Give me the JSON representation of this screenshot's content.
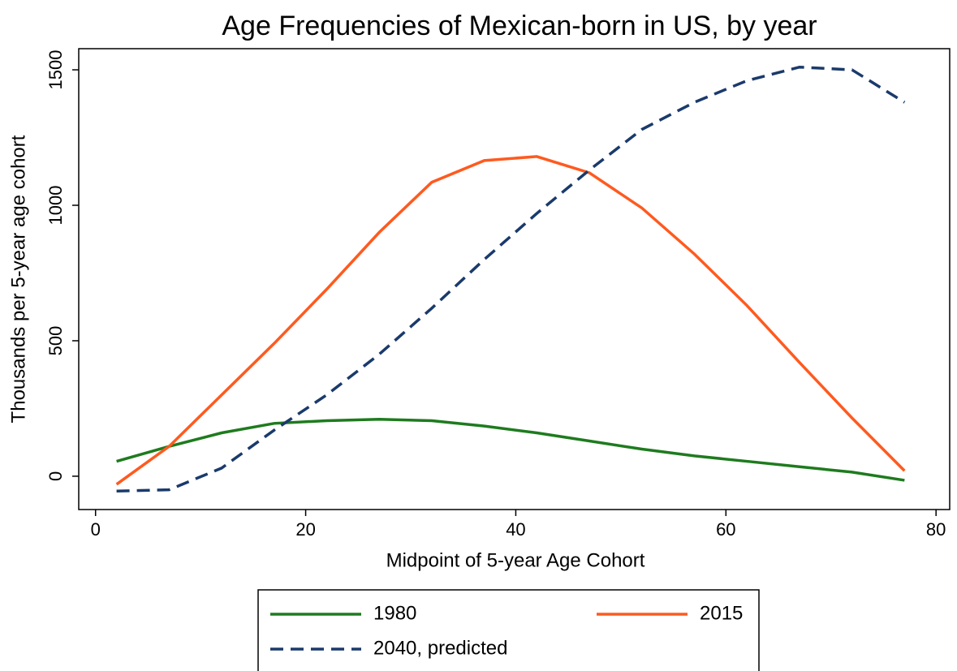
{
  "chart_data": {
    "type": "line",
    "title": "Age Frequencies of Mexican-born in US, by year",
    "xlabel": "Midpoint of 5-year Age Cohort",
    "ylabel": "Thousands per 5-year age cohort",
    "x": [
      2,
      7,
      12,
      17,
      22,
      27,
      32,
      37,
      42,
      47,
      52,
      57,
      62,
      67,
      72,
      77
    ],
    "series": [
      {
        "name": "1980",
        "color": "#1e7b1e",
        "dash": false,
        "values": [
          55,
          110,
          160,
          195,
          205,
          210,
          205,
          185,
          160,
          130,
          100,
          75,
          55,
          35,
          15,
          -15
        ]
      },
      {
        "name": "2015",
        "color": "#ff5a1f",
        "dash": false,
        "values": [
          -30,
          110,
          300,
          490,
          690,
          900,
          1085,
          1165,
          1180,
          1120,
          990,
          820,
          630,
          420,
          215,
          20
        ]
      },
      {
        "name": "2040, predicted",
        "color": "#1a3a6b",
        "dash": true,
        "values": [
          -55,
          -50,
          30,
          170,
          300,
          450,
          620,
          800,
          970,
          1130,
          1280,
          1380,
          1460,
          1510,
          1500,
          1380
        ]
      }
    ],
    "xlim": [
      -1.6,
      81.3
    ],
    "ylim": [
      -123,
      1578
    ],
    "xticks": [
      0,
      20,
      40,
      60,
      80
    ],
    "yticks": [
      0,
      500,
      1000,
      1500
    ],
    "legend": "bottom"
  }
}
